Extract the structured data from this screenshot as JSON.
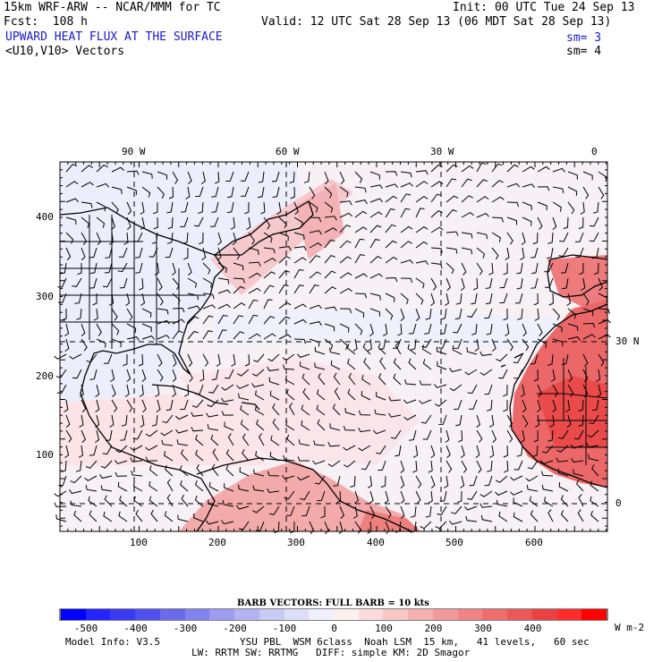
{
  "header": {
    "model_title": "15km WRF-ARW -- NCAR/MMM for TC",
    "init_label": "Init: 00 UTC Tue 24 Sep 13",
    "forecast_label": "Fcst:  108 h",
    "valid_label": "Valid: 12 UTC Sat 28 Sep 13 (06 MDT Sat 28 Sep 13)",
    "field_title": "UPWARD HEAT FLUX AT THE SURFACE",
    "field_smoothing": "sm= 3",
    "vector_title": "<U10,V10> Vectors",
    "vector_smoothing": "sm= 4"
  },
  "map": {
    "top_lon_labels": [
      "90 W",
      "60 W",
      "30 W",
      "0"
    ],
    "left_grid_labels": [
      "400",
      "300",
      "200",
      "100"
    ],
    "bottom_grid_labels": [
      "100",
      "200",
      "300",
      "400",
      "500",
      "600"
    ],
    "right_lat_labels": [
      "30 N",
      "0"
    ],
    "colors": {
      "land_outline": "#000000",
      "grid_dash": "#000000",
      "barb": "#000000"
    }
  },
  "barb_legend": "BARB VECTORS:  FULL BARB = 10 kts",
  "colorbar": {
    "labels": [
      "-500",
      "-400",
      "-300",
      "-200",
      "-100",
      "0",
      "100",
      "200",
      "300",
      "400"
    ],
    "units": "W m-2",
    "colors": [
      "#0000ff",
      "#2424ff",
      "#3a3af5",
      "#5050f0",
      "#6a6aee",
      "#8282ee",
      "#9c9cf0",
      "#b4b4f3",
      "#cacaf6",
      "#dedefa",
      "#f0f0fc",
      "#fff0f0",
      "#fcdcdc",
      "#f9c6c6",
      "#f6b0b0",
      "#f29a9a",
      "#f08484",
      "#ee6e6e",
      "#ec5858",
      "#ea4242",
      "#ff2a2a",
      "#ff0000"
    ]
  },
  "footer": {
    "model_info": "Model Info: V3.5",
    "physics_line1": "YSU PBL  WSM 6class  Noah LSM  15 km,   41 levels,   60 sec",
    "physics_line2": "LW: RRTM SW: RRTMG   DIFF: simple KM: 2D Smagor"
  }
}
